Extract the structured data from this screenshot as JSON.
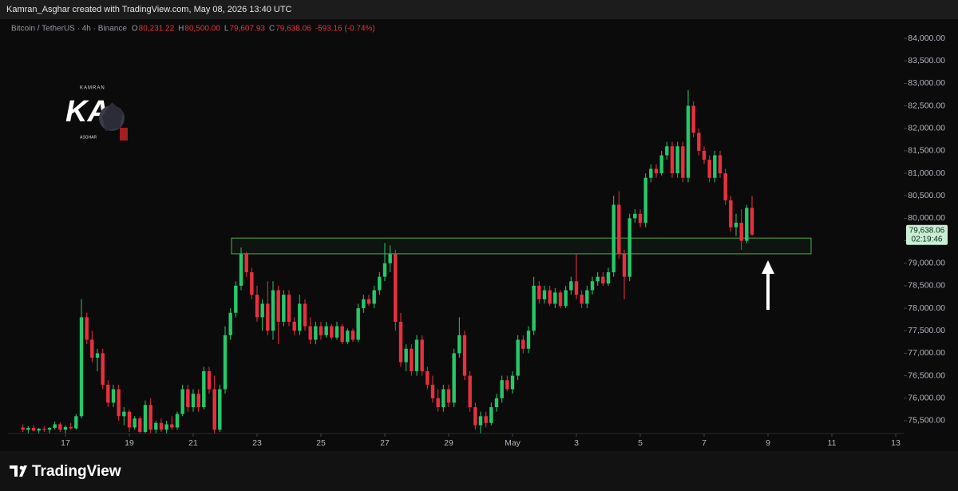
{
  "credit": "Kamran_Asghar created with TradingView.com, May 08, 2026 13:40 UTC",
  "brand": "TradingView",
  "watermark": {
    "top": "KAMRAN",
    "mark": "KA",
    "bottom": "ASGHAR"
  },
  "chart_data": {
    "type": "candlestick",
    "title": "Bitcoin / TetherUS · 4h · Binance",
    "readout": [
      {
        "key": "O",
        "value": "80,231.22"
      },
      {
        "key": "H",
        "value": "80,500.00"
      },
      {
        "key": "L",
        "value": "79,607.93"
      },
      {
        "key": "C",
        "value": "79,638.06"
      }
    ],
    "change": "-593.16 (-0.74%)",
    "up_color": "#26c86a",
    "down_color": "#e8303f",
    "xlim": [
      15.2,
      43.25
    ],
    "ylim": [
      75215,
      84320
    ],
    "xticks": [
      17,
      19,
      21,
      23,
      25,
      27,
      29,
      {
        "value": 31,
        "label": "May"
      },
      {
        "value": 33,
        "label": "3"
      },
      {
        "value": 35,
        "label": "5"
      },
      {
        "value": 37,
        "label": "7"
      },
      {
        "value": 39,
        "label": "9"
      },
      {
        "value": 41,
        "label": "11"
      },
      {
        "value": 43,
        "label": "13"
      }
    ],
    "yticks": [
      {
        "value": 75500,
        "label": "75,500.00"
      },
      {
        "value": 76000,
        "label": "76,000.00"
      },
      {
        "value": 76500,
        "label": "76,500.00"
      },
      {
        "value": 77000,
        "label": "77,000.00"
      },
      {
        "value": 77500,
        "label": "77,500.00"
      },
      {
        "value": 78000,
        "label": "78,000.00"
      },
      {
        "value": 78500,
        "label": "78,500.00"
      },
      {
        "value": 79000,
        "label": "79,000.00"
      },
      {
        "value": 79500,
        "label": "79,500.00"
      },
      {
        "value": 80000,
        "label": "80,000.00"
      },
      {
        "value": 80500,
        "label": "80,500.00"
      },
      {
        "value": 81000,
        "label": "81,000.00"
      },
      {
        "value": 81500,
        "label": "81,500.00"
      },
      {
        "value": 82000,
        "label": "82,000.00"
      },
      {
        "value": 82500,
        "label": "82,500.00"
      },
      {
        "value": 83000,
        "label": "83,000.00"
      },
      {
        "value": 83500,
        "label": "83,500.00"
      },
      {
        "value": 84000,
        "label": "84,000.00"
      }
    ],
    "x": [
      15.667,
      15.833,
      16,
      16.167,
      16.333,
      16.5,
      16.667,
      16.833,
      17,
      17.167,
      17.333,
      17.5,
      17.667,
      17.833,
      18,
      18.167,
      18.333,
      18.5,
      18.667,
      18.833,
      19,
      19.167,
      19.333,
      19.5,
      19.667,
      19.833,
      20,
      20.167,
      20.333,
      20.5,
      20.667,
      20.833,
      21,
      21.167,
      21.333,
      21.5,
      21.667,
      21.833,
      22,
      22.167,
      22.333,
      22.5,
      22.667,
      22.833,
      23,
      23.167,
      23.333,
      23.5,
      23.667,
      23.833,
      24,
      24.167,
      24.333,
      24.5,
      24.667,
      24.833,
      25,
      25.167,
      25.333,
      25.5,
      25.667,
      25.833,
      26,
      26.167,
      26.333,
      26.5,
      26.667,
      26.833,
      27,
      27.167,
      27.333,
      27.5,
      27.667,
      27.833,
      28,
      28.167,
      28.333,
      28.5,
      28.667,
      28.833,
      29,
      29.167,
      29.333,
      29.5,
      29.667,
      29.833,
      30,
      30.167,
      30.333,
      30.5,
      30.667,
      30.833,
      31,
      31.167,
      31.333,
      31.5,
      31.667,
      31.833,
      32,
      32.167,
      32.333,
      32.5,
      32.667,
      32.833,
      33,
      33.167,
      33.333,
      33.5,
      33.667,
      33.833,
      34,
      34.167,
      34.333,
      34.5,
      34.667,
      34.833,
      35,
      35.167,
      35.333,
      35.5,
      35.667,
      35.833,
      36,
      36.167,
      36.333,
      36.5,
      36.667,
      36.833,
      37,
      37.167,
      37.333,
      37.5,
      37.667,
      37.833,
      38,
      38.167,
      38.333,
      38.5
    ],
    "open": [
      75350,
      75300,
      75340,
      75280,
      75320,
      75300,
      75340,
      75420,
      75300,
      75360,
      75330,
      75600,
      77800,
      77300,
      76900,
      77000,
      76300,
      75900,
      76200,
      75600,
      75700,
      75350,
      75550,
      75250,
      75850,
      75300,
      75450,
      75300,
      75420,
      75350,
      75650,
      76200,
      75800,
      76100,
      75800,
      76600,
      76200,
      75300,
      76200,
      77400,
      77900,
      78500,
      79200,
      78800,
      78300,
      77800,
      78100,
      77500,
      78400,
      77700,
      78300,
      77700,
      77500,
      78100,
      77600,
      77300,
      77600,
      77400,
      77600,
      77350,
      77600,
      77250,
      77500,
      77300,
      78000,
      78200,
      78100,
      78400,
      78700,
      79000,
      79200,
      77700,
      76800,
      77100,
      76600,
      77300,
      76600,
      76300,
      76000,
      75800,
      76200,
      75900,
      77000,
      77400,
      76500,
      75800,
      75400,
      75600,
      75450,
      75800,
      76000,
      76400,
      76200,
      76500,
      77300,
      77100,
      77500,
      78500,
      78200,
      78400,
      78100,
      78350,
      78050,
      78400,
      78600,
      78300,
      78100,
      78400,
      78600,
      78700,
      78550,
      78800,
      80300,
      79200,
      78700,
      80000,
      80100,
      79900,
      80900,
      81100,
      81000,
      81400,
      81600,
      81000,
      81600,
      80900,
      82500,
      81900,
      81500,
      81300,
      80900,
      81400,
      81000,
      80400,
      79800,
      79900,
      79500,
      80231.22
    ],
    "high": [
      75420,
      75380,
      75400,
      75340,
      75380,
      75360,
      75480,
      75460,
      75400,
      75450,
      75650,
      78200,
      77900,
      77500,
      77100,
      77100,
      76400,
      76300,
      76300,
      75800,
      75750,
      75600,
      75600,
      75950,
      76000,
      75500,
      75550,
      75500,
      75600,
      75700,
      76300,
      76300,
      76200,
      76200,
      76700,
      76700,
      76500,
      76300,
      77600,
      78000,
      78600,
      79350,
      79250,
      78900,
      78500,
      78200,
      78600,
      78600,
      78500,
      78400,
      78400,
      77800,
      78300,
      78200,
      77800,
      77700,
      77700,
      77700,
      77650,
      77700,
      77650,
      77550,
      77550,
      78100,
      78300,
      78300,
      78500,
      78800,
      79450,
      79400,
      79300,
      77900,
      77200,
      77200,
      77400,
      77400,
      76700,
      76500,
      76200,
      76300,
      76300,
      77100,
      77800,
      77500,
      76600,
      75900,
      75700,
      75700,
      75900,
      76100,
      76500,
      76500,
      76600,
      77400,
      77400,
      77600,
      78700,
      78600,
      78500,
      78500,
      78450,
      78400,
      78500,
      78700,
      79200,
      78400,
      78500,
      78700,
      78800,
      78800,
      78900,
      80500,
      80600,
      79300,
      80100,
      80200,
      80200,
      81000,
      81200,
      81200,
      81500,
      81700,
      81700,
      81700,
      81700,
      82850,
      82600,
      82000,
      81600,
      81400,
      81500,
      81500,
      81100,
      80500,
      80100,
      80200,
      80300,
      80500
    ],
    "low": [
      75250,
      75220,
      75260,
      75200,
      75250,
      75220,
      75300,
      75250,
      75220,
      75300,
      75300,
      75550,
      77200,
      76800,
      76600,
      76200,
      75800,
      75800,
      75500,
      75400,
      75250,
      75300,
      75200,
      75200,
      75200,
      75220,
      75250,
      75220,
      75300,
      75300,
      75600,
      75700,
      75700,
      75700,
      75750,
      76100,
      75200,
      75250,
      76100,
      77300,
      77800,
      78400,
      78700,
      78200,
      77700,
      77500,
      77400,
      77300,
      77200,
      77600,
      77600,
      77400,
      77400,
      77500,
      77200,
      77200,
      77300,
      77350,
      77300,
      77300,
      77200,
      77200,
      77250,
      77250,
      77900,
      78050,
      78000,
      78300,
      78600,
      78800,
      77500,
      76700,
      76600,
      76500,
      76500,
      76500,
      76200,
      75900,
      75700,
      75700,
      75800,
      75800,
      76900,
      76400,
      75700,
      75300,
      75200,
      75350,
      75400,
      75700,
      75900,
      76150,
      76100,
      76400,
      77000,
      77000,
      77400,
      78100,
      78100,
      78050,
      78000,
      78000,
      78000,
      78300,
      78200,
      78000,
      78000,
      78300,
      78500,
      78500,
      78500,
      78700,
      79100,
      78200,
      78600,
      79900,
      79800,
      79800,
      80800,
      80900,
      80950,
      81300,
      80900,
      80900,
      80800,
      80800,
      81800,
      81400,
      81200,
      80800,
      80800,
      80900,
      80300,
      79700,
      79600,
      79300,
      79450,
      79607.93
    ],
    "close": [
      75300,
      75340,
      75280,
      75320,
      75300,
      75340,
      75420,
      75300,
      75360,
      75330,
      75600,
      77800,
      77300,
      76900,
      77000,
      76300,
      75900,
      76200,
      75600,
      75700,
      75350,
      75550,
      75250,
      75850,
      75300,
      75450,
      75300,
      75420,
      75350,
      75650,
      76200,
      75800,
      76100,
      75800,
      76600,
      76200,
      75300,
      76200,
      77400,
      77900,
      78500,
      79200,
      78800,
      78300,
      77800,
      78100,
      77500,
      78400,
      77700,
      78300,
      77700,
      77500,
      78100,
      77600,
      77300,
      77600,
      77400,
      77600,
      77350,
      77600,
      77250,
      77500,
      77300,
      78000,
      78200,
      78100,
      78400,
      78700,
      79000,
      79200,
      77700,
      76800,
      77100,
      76600,
      77300,
      76600,
      76300,
      76000,
      75800,
      76200,
      75900,
      77000,
      77400,
      76500,
      75800,
      75400,
      75600,
      75450,
      75800,
      76000,
      76400,
      76200,
      76500,
      77300,
      77100,
      77500,
      78500,
      78200,
      78400,
      78100,
      78350,
      78050,
      78400,
      78600,
      78300,
      78100,
      78400,
      78600,
      78700,
      78550,
      78800,
      80300,
      79200,
      78700,
      80000,
      80100,
      79900,
      80900,
      81100,
      81000,
      81400,
      81600,
      81000,
      81600,
      80900,
      82500,
      81900,
      81500,
      81300,
      80900,
      81400,
      81000,
      80400,
      79800,
      79900,
      79500,
      80231.22,
      79638.06
    ],
    "last_price": {
      "value": 79638.06,
      "label": "79,638.06"
    },
    "countdown": "02:19:46",
    "zone": {
      "x": [
        22.2,
        40.35
      ],
      "y": [
        79210,
        79560
      ],
      "color": "#4caf50"
    }
  }
}
